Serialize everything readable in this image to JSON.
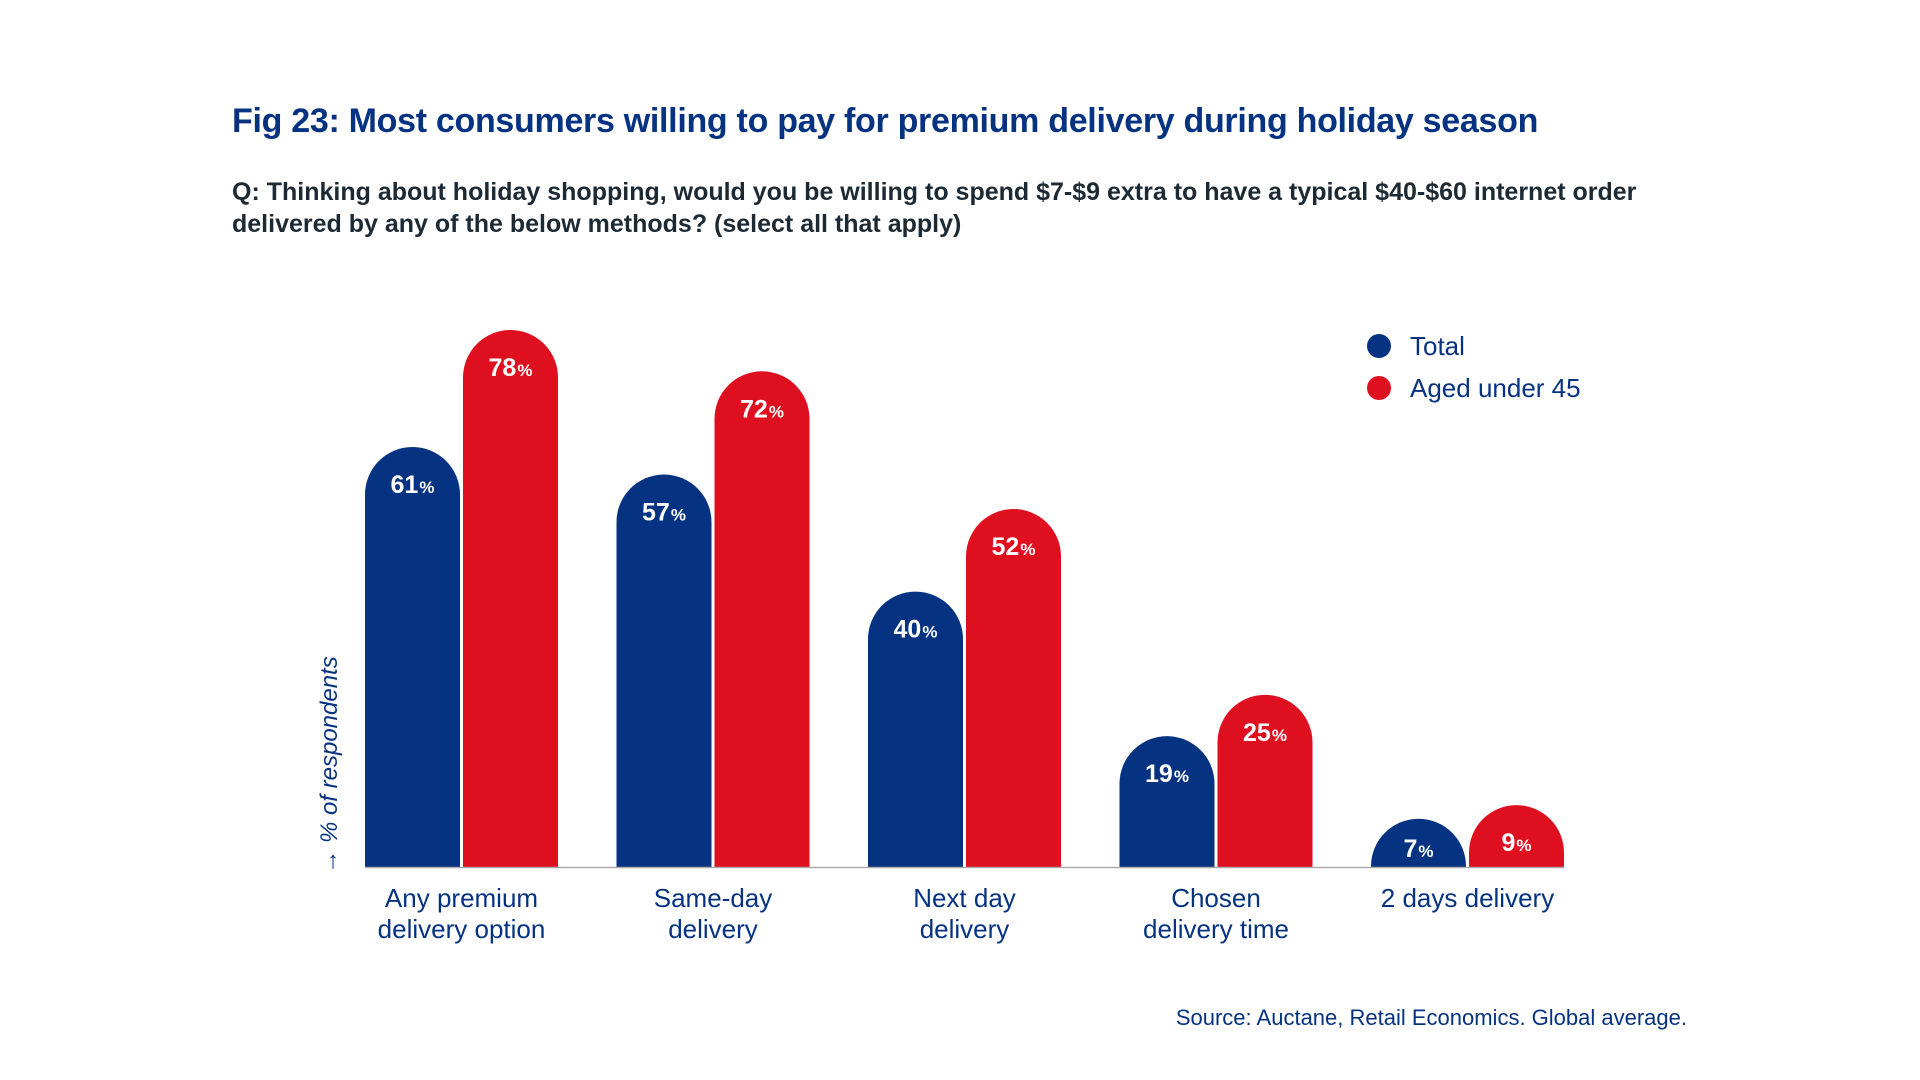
{
  "header": {
    "title": "Fig 23: Most consumers willing to pay for premium delivery during holiday season",
    "subtitle": "Q: Thinking about holiday shopping, would you be willing to spend $7-$9 extra to have a typical $40-$60 internet order delivered by any of the below methods? (select all that apply)"
  },
  "footer": {
    "source": "Source: Auctane, Retail Economics. Global average."
  },
  "colors": {
    "total": "#063381",
    "aged_under_45": "#DE1020",
    "text_dark": "#1e2a33",
    "axis": "#aaaaaa"
  },
  "chart_data": {
    "type": "bar",
    "title": "Fig 23: Most consumers willing to pay for premium delivery during holiday season",
    "subtitle": "Q: Thinking about holiday shopping, would you be willing to spend $7-$9 extra to have a typical $40-$60 internet order delivered by any of the below methods? (select all that apply)",
    "xlabel": "",
    "ylabel": "→ % of respondents",
    "ylim": [
      0,
      80
    ],
    "grid": false,
    "legend_position": "top-right",
    "value_suffix": "%",
    "categories": [
      [
        "Any premium",
        "delivery option"
      ],
      [
        "Same-day",
        "delivery"
      ],
      [
        "Next day",
        "delivery"
      ],
      [
        "Chosen",
        "delivery time"
      ],
      [
        "2 days delivery"
      ]
    ],
    "series": [
      {
        "name": "Total",
        "color": "#063381",
        "values": [
          61,
          57,
          40,
          19,
          7
        ]
      },
      {
        "name": "Aged under 45",
        "color": "#DE1020",
        "values": [
          78,
          72,
          52,
          25,
          9
        ]
      }
    ]
  }
}
